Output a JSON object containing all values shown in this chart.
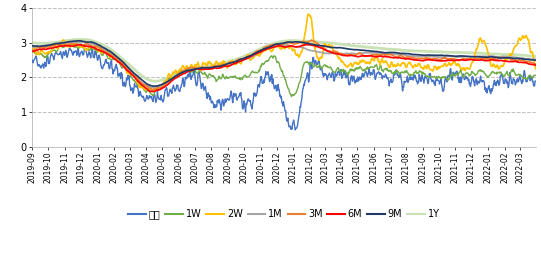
{
  "series": {
    "隔夜": {
      "color": "#4472C4",
      "lw": 1.0,
      "zorder": 3
    },
    "1W": {
      "color": "#70AD47",
      "lw": 1.0,
      "zorder": 4
    },
    "2W": {
      "color": "#FFC000",
      "lw": 1.2,
      "zorder": 5
    },
    "1M": {
      "color": "#A5A5A5",
      "lw": 1.2,
      "zorder": 6
    },
    "3M": {
      "color": "#ED7D31",
      "lw": 1.2,
      "zorder": 7
    },
    "6M": {
      "color": "#FF0000",
      "lw": 1.2,
      "zorder": 8
    },
    "9M": {
      "color": "#1F3864",
      "lw": 1.2,
      "zorder": 9
    },
    "1Y": {
      "color": "#C9E2B3",
      "lw": 2.0,
      "zorder": 1
    }
  },
  "legend_order": [
    "隔夜",
    "1W",
    "2W",
    "1M",
    "3M",
    "6M",
    "9M",
    "1Y"
  ],
  "ylim": [
    0,
    4
  ],
  "yticks": [
    0,
    1,
    2,
    3,
    4
  ],
  "background_color": "#FFFFFF",
  "grid_color": "#C0C0C0",
  "grid_ls": "--",
  "grid_lw": 0.7
}
